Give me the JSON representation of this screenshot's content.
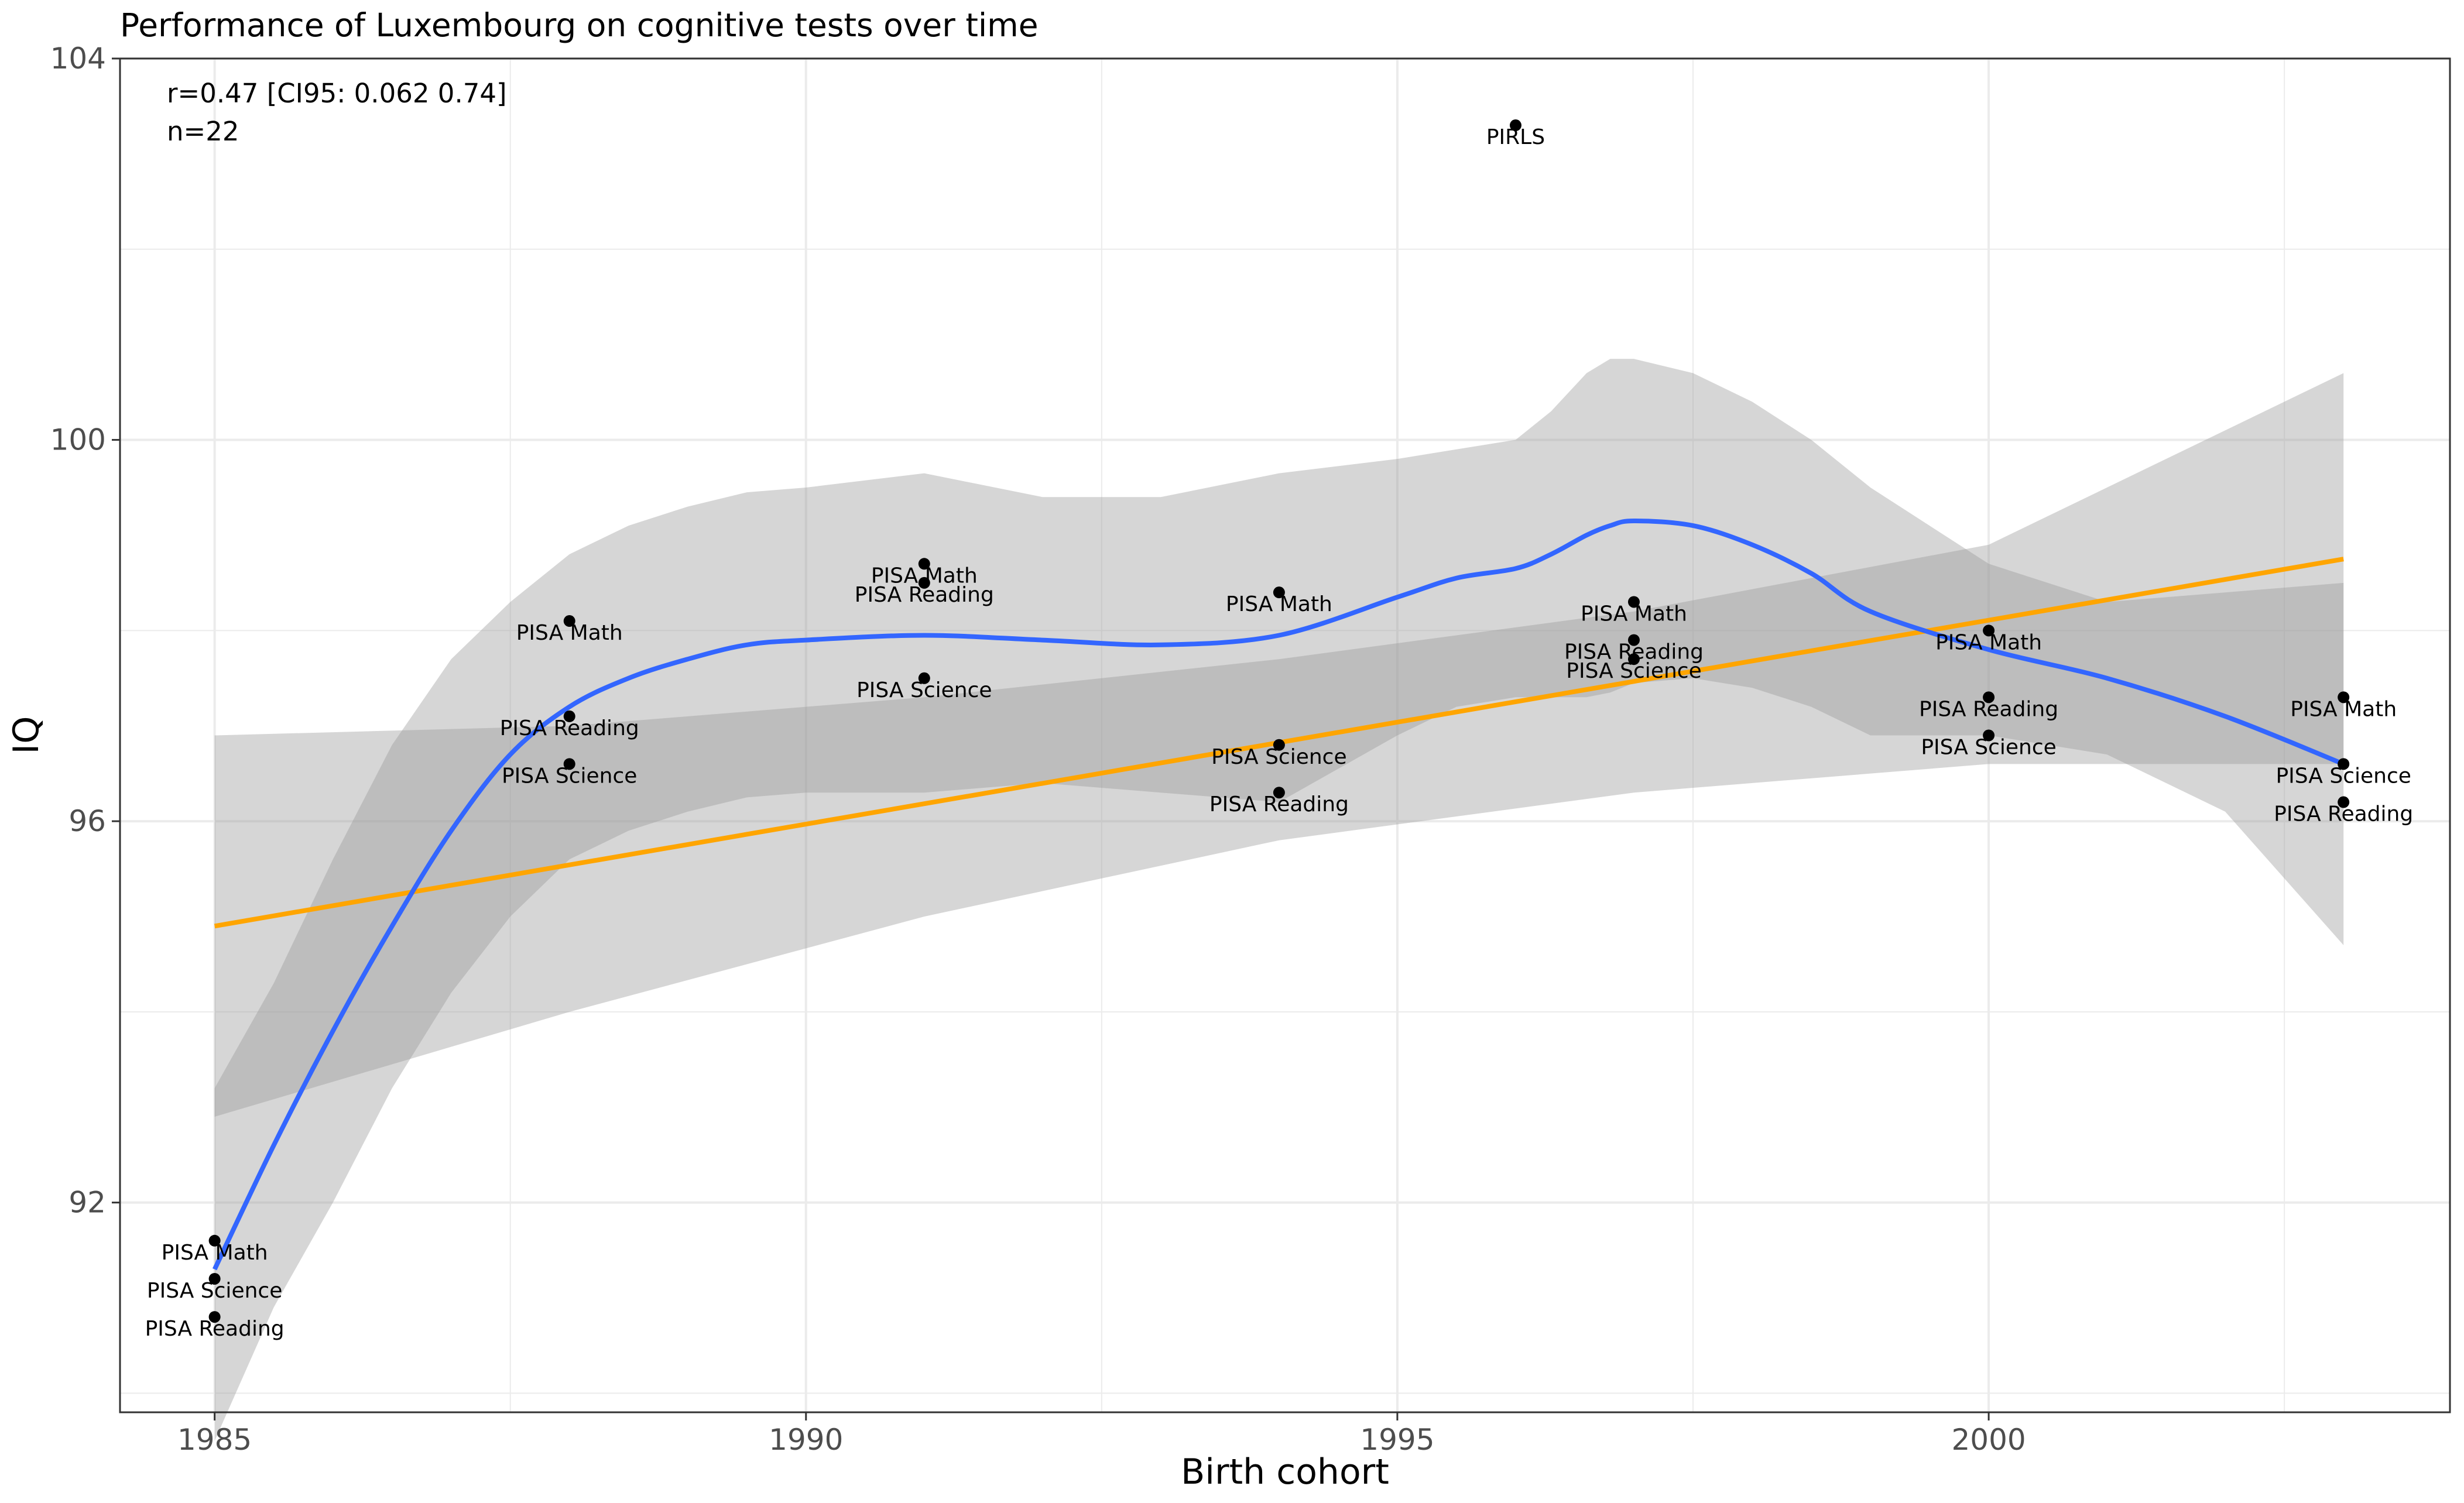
{
  "chart_data": {
    "type": "scatter",
    "title": "Performance of Luxembourg on cognitive tests over time",
    "xlabel": "Birth cohort",
    "ylabel": "IQ",
    "xlim": [
      1984.2,
      2003.9
    ],
    "ylim": [
      89.8,
      104.0
    ],
    "x_ticks": [
      1985,
      1990,
      1995,
      2000
    ],
    "y_ticks": [
      92,
      96,
      100,
      104
    ],
    "grid": true,
    "annotations": [
      "r=0.47 [CI95: 0.062 0.74]",
      "n=22"
    ],
    "points": [
      {
        "x": 1985,
        "y": 91.6,
        "label": "PISA Math"
      },
      {
        "x": 1985,
        "y": 91.2,
        "label": "PISA Science"
      },
      {
        "x": 1985,
        "y": 90.8,
        "label": "PISA Reading"
      },
      {
        "x": 1988,
        "y": 98.1,
        "label": "PISA Math"
      },
      {
        "x": 1988,
        "y": 97.1,
        "label": "PISA Reading"
      },
      {
        "x": 1988,
        "y": 96.6,
        "label": "PISA Science"
      },
      {
        "x": 1991,
        "y": 98.7,
        "label": "PISA Math"
      },
      {
        "x": 1991,
        "y": 98.5,
        "label": "PISA Reading"
      },
      {
        "x": 1991,
        "y": 97.5,
        "label": "PISA Science"
      },
      {
        "x": 1994,
        "y": 98.4,
        "label": "PISA Math"
      },
      {
        "x": 1994,
        "y": 96.8,
        "label": "PISA Science"
      },
      {
        "x": 1994,
        "y": 96.3,
        "label": "PISA Reading"
      },
      {
        "x": 1996,
        "y": 103.3,
        "label": "PIRLS"
      },
      {
        "x": 1997,
        "y": 98.3,
        "label": "PISA Math"
      },
      {
        "x": 1997,
        "y": 97.9,
        "label": "PISA Reading"
      },
      {
        "x": 1997,
        "y": 97.7,
        "label": "PISA Science"
      },
      {
        "x": 2000,
        "y": 98.0,
        "label": "PISA Math"
      },
      {
        "x": 2000,
        "y": 97.3,
        "label": "PISA Reading"
      },
      {
        "x": 2000,
        "y": 96.9,
        "label": "PISA Science"
      },
      {
        "x": 2003,
        "y": 97.3,
        "label": "PISA Math"
      },
      {
        "x": 2003,
        "y": 96.6,
        "label": "PISA Science"
      },
      {
        "x": 2003,
        "y": 96.2,
        "label": "PISA Reading"
      }
    ],
    "linear_fit": {
      "color": "#FFA500",
      "line": [
        [
          1985,
          94.9
        ],
        [
          2003,
          98.75
        ]
      ],
      "ci_band": {
        "x": [
          1985,
          1988,
          1991,
          1994,
          1997,
          2000,
          2003
        ],
        "upper": [
          96.9,
          97.0,
          97.3,
          97.7,
          98.2,
          98.9,
          100.7
        ],
        "lower": [
          92.9,
          94.0,
          95.0,
          95.8,
          96.3,
          96.6,
          96.6
        ]
      }
    },
    "loess_fit": {
      "color": "#3366FF",
      "x": [
        1985,
        1985.5,
        1986,
        1986.5,
        1987,
        1987.5,
        1988,
        1988.5,
        1989,
        1989.5,
        1990,
        1991,
        1992,
        1993,
        1994,
        1995,
        1995.5,
        1996,
        1996.3,
        1996.6,
        1996.8,
        1997,
        1997.5,
        1998,
        1998.5,
        1999,
        2000,
        2001,
        2002,
        2003
      ],
      "y": [
        91.3,
        92.6,
        93.8,
        94.9,
        95.9,
        96.7,
        97.2,
        97.5,
        97.7,
        97.85,
        97.9,
        97.95,
        97.9,
        97.85,
        97.95,
        98.35,
        98.55,
        98.65,
        98.8,
        99.0,
        99.1,
        99.15,
        99.1,
        98.9,
        98.6,
        98.2,
        97.8,
        97.5,
        97.1,
        96.6
      ],
      "upper": [
        93.2,
        94.3,
        95.6,
        96.8,
        97.7,
        98.3,
        98.8,
        99.1,
        99.3,
        99.45,
        99.5,
        99.65,
        99.4,
        99.4,
        99.65,
        99.8,
        99.9,
        100.0,
        100.3,
        100.7,
        100.85,
        100.85,
        100.7,
        100.4,
        100.0,
        99.5,
        98.7,
        98.3,
        98.4,
        98.5
      ],
      "lower": [
        89.5,
        90.9,
        92.0,
        93.2,
        94.2,
        95.0,
        95.6,
        95.9,
        96.1,
        96.25,
        96.3,
        96.3,
        96.4,
        96.3,
        96.2,
        96.9,
        97.2,
        97.3,
        97.3,
        97.3,
        97.35,
        97.45,
        97.5,
        97.4,
        97.2,
        96.9,
        96.9,
        96.7,
        96.1,
        94.7
      ]
    }
  }
}
